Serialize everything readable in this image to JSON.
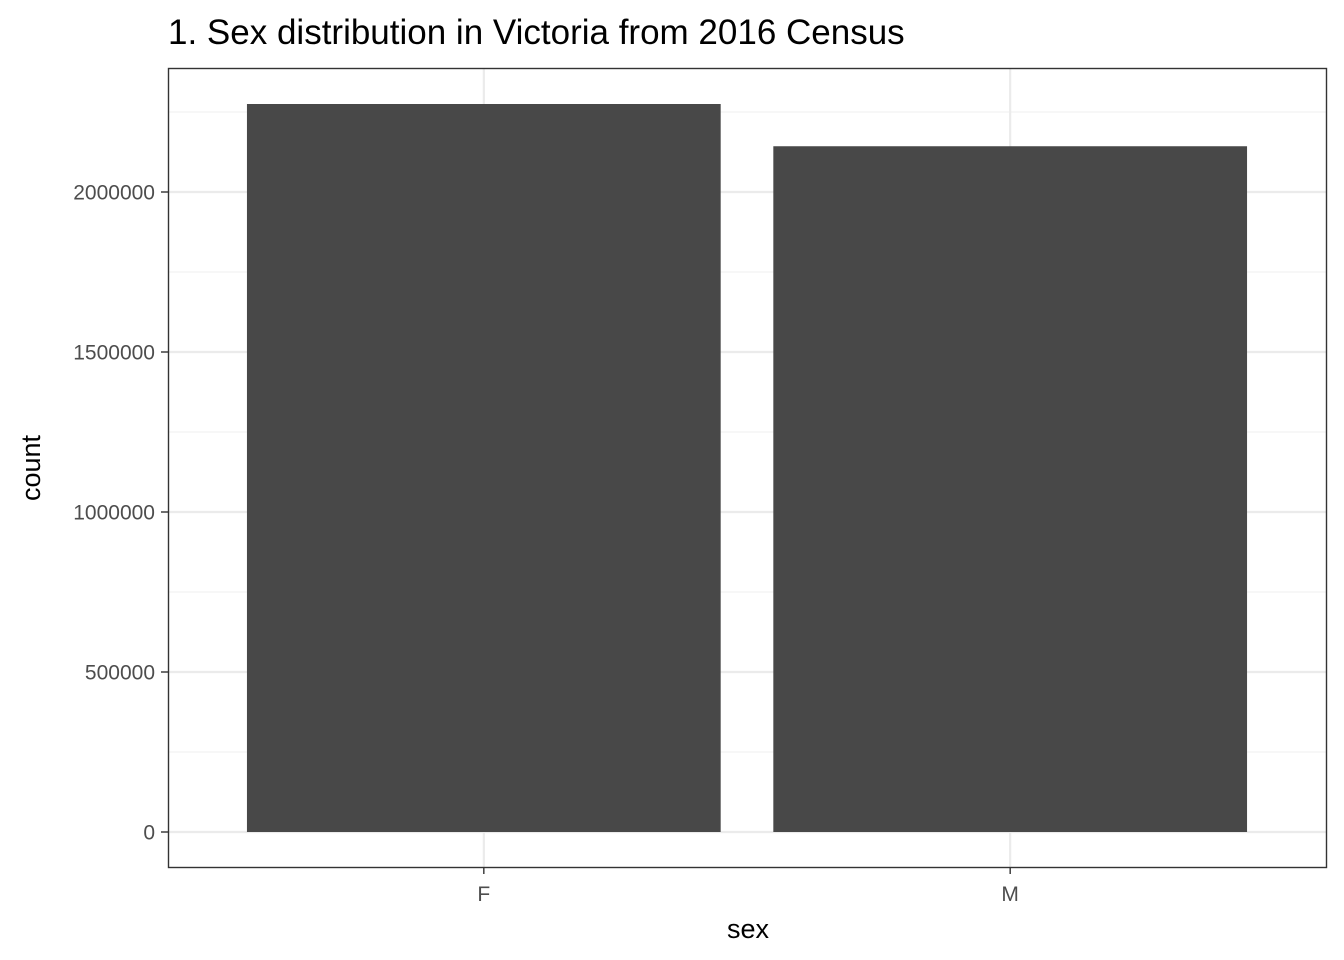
{
  "chart_data": {
    "type": "bar",
    "title": "1. Sex distribution in Victoria from 2016 Census",
    "xlabel": "sex",
    "ylabel": "count",
    "categories": [
      "F",
      "M"
    ],
    "values": [
      2275000,
      2143000
    ],
    "ylim": [
      -115000,
      2420000
    ],
    "yticks": [
      0,
      500000,
      1000000,
      1500000,
      2000000
    ],
    "ytick_labels": [
      "0",
      "500000",
      "1000000",
      "1500000",
      "2000000"
    ],
    "grid": true,
    "legend": "none",
    "colors": {
      "bar": "#484848",
      "panel_border": "#333333",
      "grid_major": "#ebebeb",
      "grid_minor": "#f2f2f2",
      "tick_label": "#4d4d4d",
      "text": "#000000"
    }
  }
}
